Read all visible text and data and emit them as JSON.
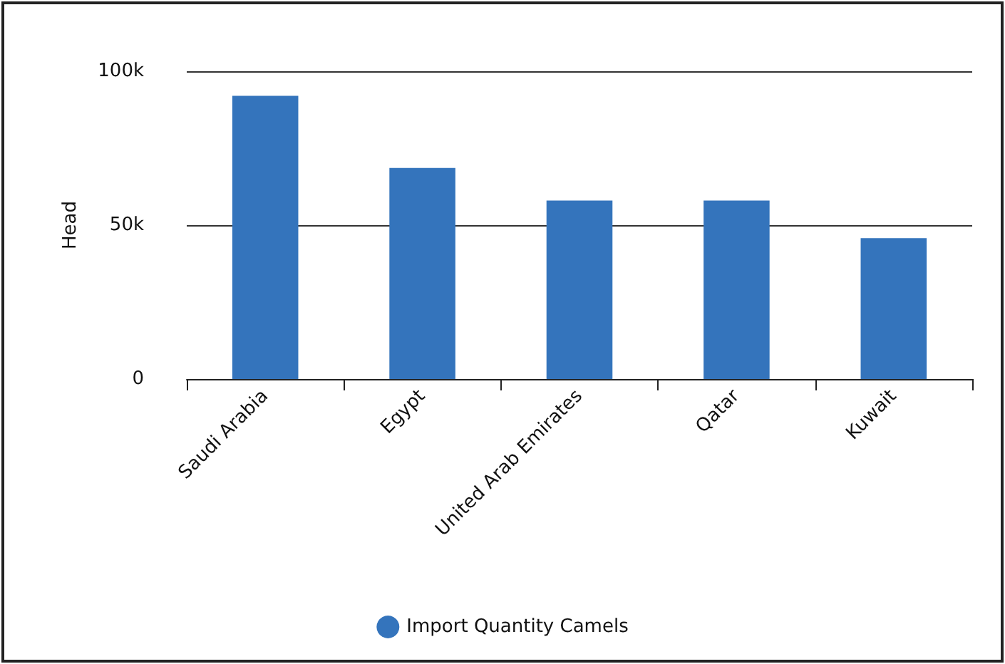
{
  "chart_data": {
    "type": "bar",
    "ylabel": "Head",
    "categories": [
      "Saudi Arabia",
      "Egypt",
      "United Arab Emirates",
      "Qatar",
      "Kuwait"
    ],
    "series": [
      {
        "name": "Import Quantity Camels",
        "color": "#3474bc",
        "values": [
          92000,
          68600,
          58000,
          58000,
          45800
        ]
      }
    ],
    "ylim": [
      0,
      100000
    ],
    "yticks": [
      {
        "value": 0,
        "label": "0"
      },
      {
        "value": 50000,
        "label": "50k"
      },
      {
        "value": 100000,
        "label": "100k"
      }
    ],
    "grid": "y",
    "legend": "bottom"
  }
}
